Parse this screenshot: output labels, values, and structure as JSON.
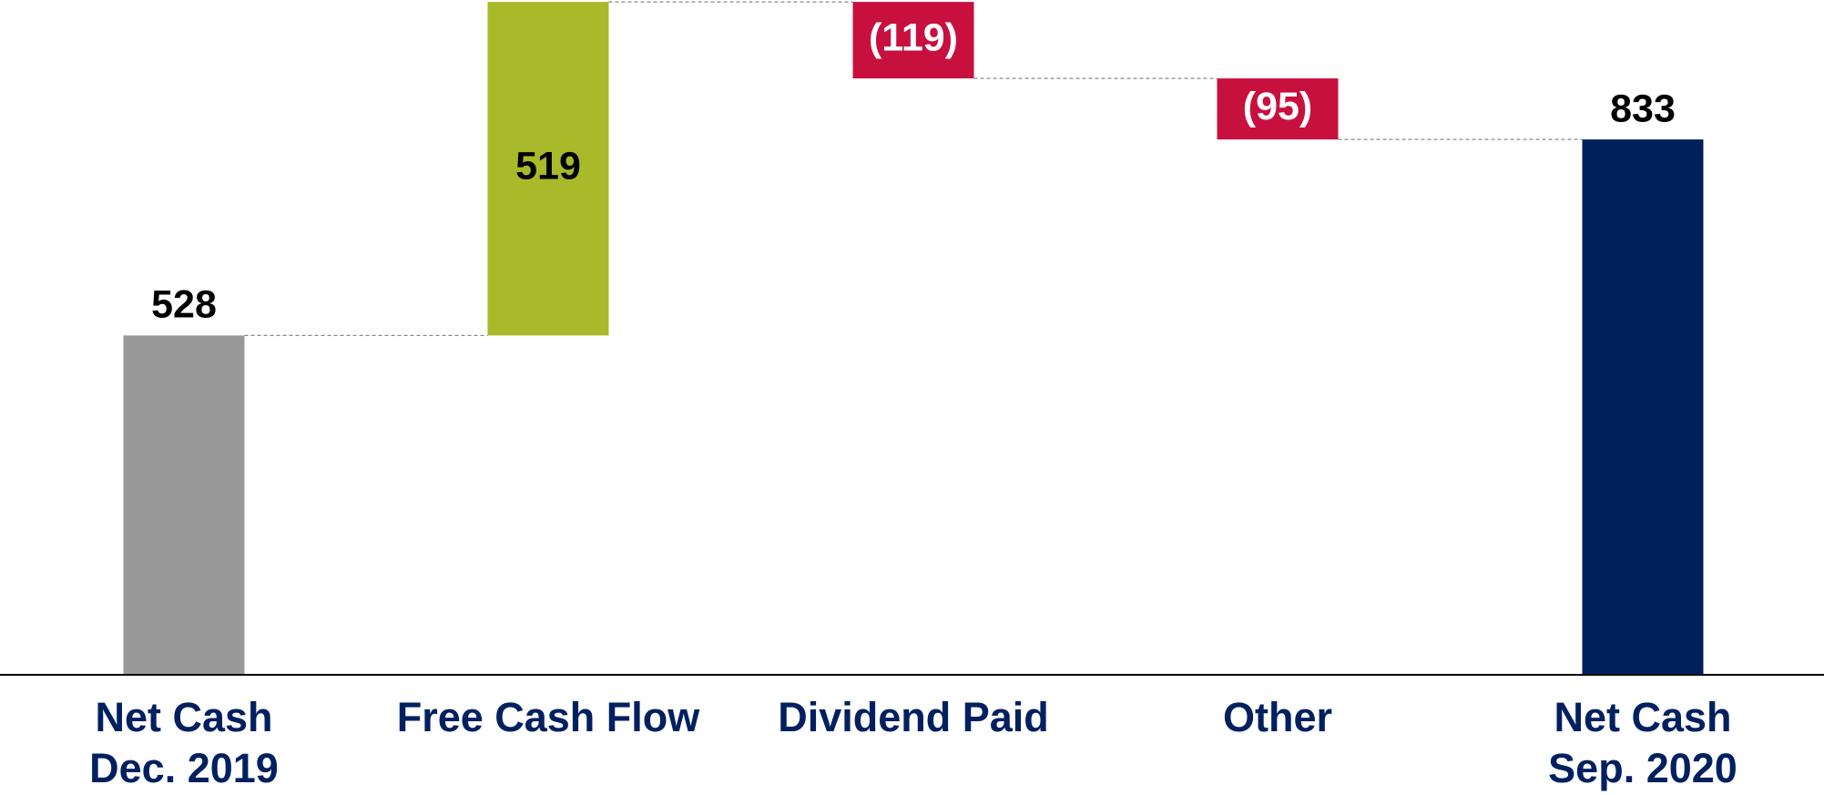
{
  "chart_data": {
    "type": "waterfall",
    "categories": [
      [
        "Net Cash",
        "Dec. 2019"
      ],
      [
        "Free Cash Flow"
      ],
      [
        "Dividend Paid"
      ],
      [
        "Other"
      ],
      [
        "Net Cash",
        "Sep. 2020"
      ]
    ],
    "values": [
      528,
      519,
      -119,
      -95,
      833
    ],
    "value_labels": [
      "528",
      "519",
      "(119)",
      "(95)",
      "833"
    ],
    "colors": [
      "#999999",
      "#a8b92a",
      "#c8103e",
      "#c8103e",
      "#00205b"
    ],
    "ylim": [
      0,
      1050
    ]
  }
}
